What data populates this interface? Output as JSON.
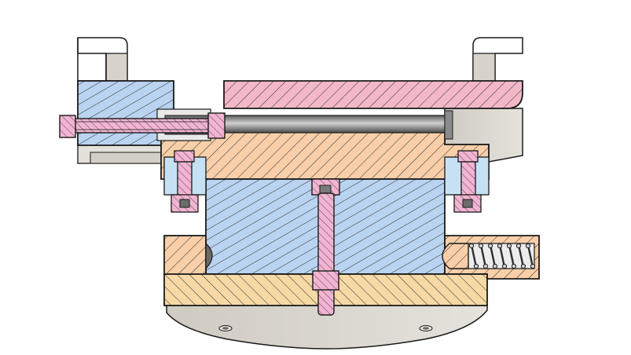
{
  "diagram": {
    "kind": "mechanical assembly cross-section",
    "colors": {
      "background": "#ffffff",
      "outline": "#1a1a1a",
      "steel_gray": "#d9d6cf",
      "steel_gray_dark": "#b9b5ad",
      "hatch": "#2a2a2a",
      "blue_part": "#b9d3f0",
      "pink_part": "#f3b8c8",
      "peach_part": "#f8cfa8",
      "tan_part": "#f7d9a6",
      "fastener_pink": "#f2b4d2",
      "rod_dark": "#7f7f7f",
      "rod_light": "#e6e6e6",
      "spring_dark": "#3a3a3a"
    },
    "parts": [
      {
        "name": "left-clamp-jaw",
        "material": "steel_gray"
      },
      {
        "name": "right-clamp-jaw",
        "material": "steel_gray"
      },
      {
        "name": "left-sliding-block",
        "material": "blue_part"
      },
      {
        "name": "top-clamp-plate",
        "material": "pink_part"
      },
      {
        "name": "guide-plate",
        "material": "peach_part"
      },
      {
        "name": "center-body",
        "material": "blue_part"
      },
      {
        "name": "base-plate",
        "material": "tan_part"
      },
      {
        "name": "left-base-block",
        "material": "peach_part"
      },
      {
        "name": "right-spring-housing",
        "material": "peach_part"
      },
      {
        "name": "lead-screw",
        "material": "fastener_pink"
      },
      {
        "name": "center-pin",
        "material": "fastener_pink"
      },
      {
        "name": "left-cap-screw",
        "material": "fastener_pink"
      },
      {
        "name": "right-cap-screw",
        "material": "fastener_pink"
      },
      {
        "name": "compression-spring",
        "material": "spring_dark"
      },
      {
        "name": "guide-rod",
        "material": "rod_dark"
      },
      {
        "name": "mounting-disc",
        "material": "steel_gray"
      }
    ]
  }
}
